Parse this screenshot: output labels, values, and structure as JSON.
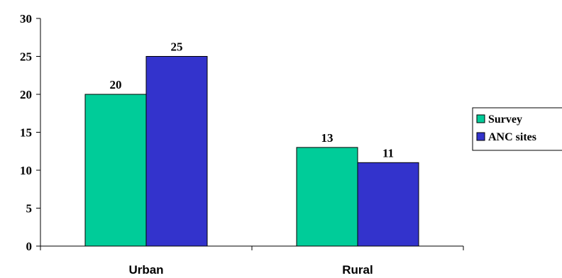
{
  "chart_data": {
    "type": "bar",
    "categories": [
      "Urban",
      "Rural"
    ],
    "series": [
      {
        "name": "Survey",
        "values": [
          20,
          13
        ],
        "color": "#00cc99"
      },
      {
        "name": "ANC sites",
        "values": [
          25,
          11
        ],
        "color": "#3333cc"
      }
    ],
    "yticks": [
      0,
      5,
      10,
      15,
      20,
      25,
      30
    ],
    "ylim": [
      0,
      30
    ],
    "xlabel": "",
    "ylabel": "",
    "title": "",
    "grid": false,
    "legend_position": "right"
  }
}
